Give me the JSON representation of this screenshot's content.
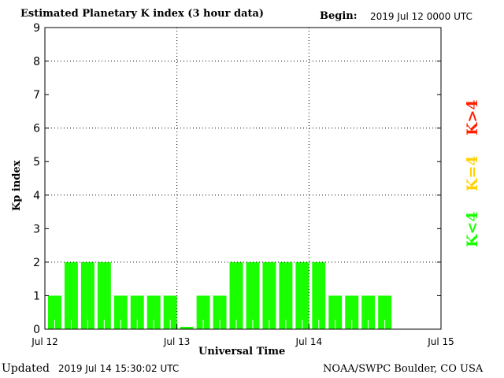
{
  "chart_data": {
    "type": "bar",
    "title": "Estimated Planetary K index (3 hour data)",
    "begin_label": "Begin:",
    "begin_value": "2019 Jul 12 0000 UTC",
    "xlabel": "Universal Time",
    "ylabel": "Kp index",
    "ylim": [
      0,
      9
    ],
    "yticks": [
      "0",
      "1",
      "2",
      "3",
      "4",
      "5",
      "6",
      "7",
      "8",
      "9"
    ],
    "xticks": [
      "Jul 12",
      "Jul 13",
      "Jul 14",
      "Jul 15"
    ],
    "slots_per_day": 8,
    "values": [
      1,
      2,
      2,
      2,
      1,
      1,
      1,
      1,
      0,
      1,
      1,
      2,
      2,
      2,
      2,
      2,
      2,
      1,
      1,
      1,
      1
    ],
    "legend": [
      {
        "label": "K>4",
        "color": "#ff2000"
      },
      {
        "label": "K=4",
        "color": "#ffd200"
      },
      {
        "label": "K<4",
        "color": "#19ff00"
      }
    ],
    "bar_color": "#19ff00",
    "grid": true
  },
  "footer": {
    "updated_label": "Updated",
    "updated_value": "2019 Jul 14 15:30:02 UTC",
    "source": "NOAA/SWPC Boulder, CO USA"
  }
}
